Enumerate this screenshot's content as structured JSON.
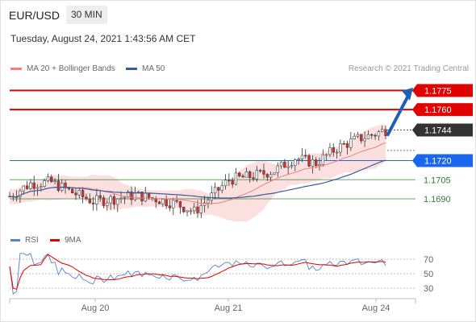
{
  "header": {
    "symbol": "EUR/USD",
    "timeframe": "30 MIN"
  },
  "subtitle": "Tuesday, August 24, 2021 1:43:56 AM CET",
  "legend": {
    "ma20_label": "MA 20 + Bollinger Bands",
    "ma20_color": "#f08080",
    "ma50_label": "MA 50",
    "ma50_color": "#3a5a98",
    "credit": "Research © 2021 Trading Central"
  },
  "rsi_legend": {
    "rsi_label": "RSI",
    "rsi_color": "#5a7fd4",
    "ma_label": "9MA",
    "ma_color": "#e00000"
  },
  "chart_data": {
    "type": "candlestick",
    "ylim": [
      1.1666,
      1.1786
    ],
    "x_tick_labels": [
      "Aug 20",
      "Aug 21",
      "Aug 24"
    ],
    "levels": [
      {
        "value": 1.1775,
        "label": "1.1775",
        "role": "resistance",
        "color": "#e00000",
        "badge": true
      },
      {
        "value": 1.176,
        "label": "1.1760",
        "role": "resistance",
        "color": "#e00000",
        "badge": true
      },
      {
        "value": 1.1744,
        "label": "1.1744",
        "role": "last price",
        "color": "#333333",
        "badge": true
      },
      {
        "value": 1.172,
        "label": "1.1720",
        "role": "pivot",
        "color": "#1a66ee",
        "badge": true
      },
      {
        "value": 1.1705,
        "label": "1.1705",
        "role": "support",
        "color": "#2e7d32",
        "badge": false
      },
      {
        "value": 1.169,
        "label": "1.1690",
        "role": "support",
        "color": "#2e7d32",
        "badge": false
      }
    ],
    "rsi": {
      "ylim": [
        20,
        80
      ],
      "levels": [
        70,
        50,
        30
      ]
    }
  }
}
